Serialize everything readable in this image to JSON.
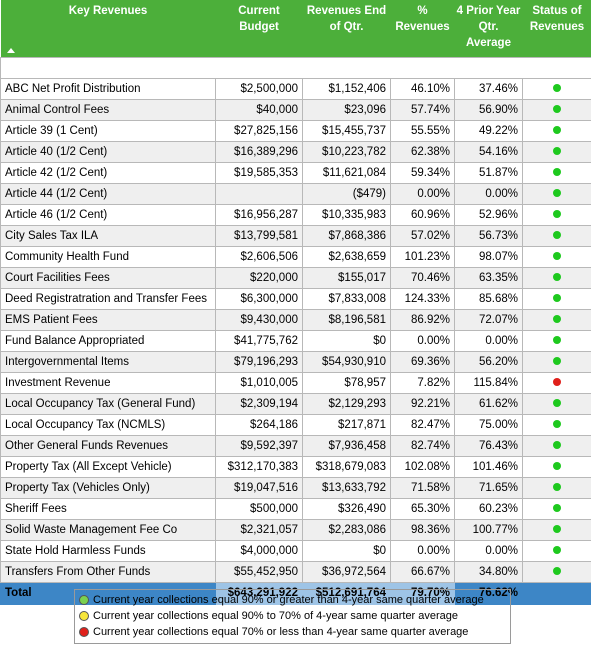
{
  "colors": {
    "header_bg": "#4caf3a",
    "total_bg": "#3d86c6",
    "total_highlight": "#9ec4e6",
    "status_green": "#1ec91e",
    "status_red": "#e0201b",
    "legend_green": "#7ad14f",
    "legend_yellow": "#f7e63b",
    "legend_red": "#e0201b"
  },
  "headers": {
    "key_revenues": "Key Revenues",
    "current_budget": "Current Budget",
    "revenues_end": "Revenues End of Qtr.",
    "pct_revenues": "% Revenues",
    "prior_avg": "4 Prior Year Qtr. Average",
    "status": "Status of Revenues"
  },
  "rows": [
    {
      "name": "ABC Net Profit Distribution",
      "budget": "$2,500,000",
      "end_qtr": "$1,152,406",
      "pct": "46.10%",
      "avg": "37.46%",
      "status": "green"
    },
    {
      "name": "Animal Control Fees",
      "budget": "$40,000",
      "end_qtr": "$23,096",
      "pct": "57.74%",
      "avg": "56.90%",
      "status": "green"
    },
    {
      "name": "Article 39 (1 Cent)",
      "budget": "$27,825,156",
      "end_qtr": "$15,455,737",
      "pct": "55.55%",
      "avg": "49.22%",
      "status": "green"
    },
    {
      "name": "Article 40 (1/2 Cent)",
      "budget": "$16,389,296",
      "end_qtr": "$10,223,782",
      "pct": "62.38%",
      "avg": "54.16%",
      "status": "green"
    },
    {
      "name": "Article 42 (1/2 Cent)",
      "budget": "$19,585,353",
      "end_qtr": "$11,621,084",
      "pct": "59.34%",
      "avg": "51.87%",
      "status": "green"
    },
    {
      "name": "Article 44 (1/2 Cent)",
      "budget": "",
      "end_qtr": "($479)",
      "pct": "0.00%",
      "avg": "0.00%",
      "status": "green"
    },
    {
      "name": "Article 46 (1/2 Cent)",
      "budget": "$16,956,287",
      "end_qtr": "$10,335,983",
      "pct": "60.96%",
      "avg": "52.96%",
      "status": "green"
    },
    {
      "name": "City Sales Tax ILA",
      "budget": "$13,799,581",
      "end_qtr": "$7,868,386",
      "pct": "57.02%",
      "avg": "56.73%",
      "status": "green"
    },
    {
      "name": "Community Health Fund",
      "budget": "$2,606,506",
      "end_qtr": "$2,638,659",
      "pct": "101.23%",
      "avg": "98.07%",
      "status": "green"
    },
    {
      "name": "Court Facilities Fees",
      "budget": "$220,000",
      "end_qtr": "$155,017",
      "pct": "70.46%",
      "avg": "63.35%",
      "status": "green"
    },
    {
      "name": "Deed Registratration and Transfer Fees",
      "budget": "$6,300,000",
      "end_qtr": "$7,833,008",
      "pct": "124.33%",
      "avg": "85.68%",
      "status": "green"
    },
    {
      "name": "EMS Patient Fees",
      "budget": "$9,430,000",
      "end_qtr": "$8,196,581",
      "pct": "86.92%",
      "avg": "72.07%",
      "status": "green"
    },
    {
      "name": "Fund Balance Appropriated",
      "budget": "$41,775,762",
      "end_qtr": "$0",
      "pct": "0.00%",
      "avg": "0.00%",
      "status": "green"
    },
    {
      "name": "Intergovernmental Items",
      "budget": "$79,196,293",
      "end_qtr": "$54,930,910",
      "pct": "69.36%",
      "avg": "56.20%",
      "status": "green"
    },
    {
      "name": "Investment Revenue",
      "budget": "$1,010,005",
      "end_qtr": "$78,957",
      "pct": "7.82%",
      "avg": "115.84%",
      "status": "red"
    },
    {
      "name": "Local Occupancy Tax (General Fund)",
      "budget": "$2,309,194",
      "end_qtr": "$2,129,293",
      "pct": "92.21%",
      "avg": "61.62%",
      "status": "green"
    },
    {
      "name": "Local Occupancy Tax (NCMLS)",
      "budget": "$264,186",
      "end_qtr": "$217,871",
      "pct": "82.47%",
      "avg": "75.00%",
      "status": "green"
    },
    {
      "name": "Other General Funds Revenues",
      "budget": "$9,592,397",
      "end_qtr": "$7,936,458",
      "pct": "82.74%",
      "avg": "76.43%",
      "status": "green"
    },
    {
      "name": "Property Tax (All Except Vehicle)",
      "budget": "$312,170,383",
      "end_qtr": "$318,679,083",
      "pct": "102.08%",
      "avg": "101.46%",
      "status": "green"
    },
    {
      "name": "Property Tax (Vehicles Only)",
      "budget": "$19,047,516",
      "end_qtr": "$13,633,792",
      "pct": "71.58%",
      "avg": "71.65%",
      "status": "green"
    },
    {
      "name": "Sheriff Fees",
      "budget": "$500,000",
      "end_qtr": "$326,490",
      "pct": "65.30%",
      "avg": "60.23%",
      "status": "green"
    },
    {
      "name": "Solid Waste Management Fee Co",
      "budget": "$2,321,057",
      "end_qtr": "$2,283,086",
      "pct": "98.36%",
      "avg": "100.77%",
      "status": "green"
    },
    {
      "name": "State Hold Harmless Funds",
      "budget": "$4,000,000",
      "end_qtr": "$0",
      "pct": "0.00%",
      "avg": "0.00%",
      "status": "green"
    },
    {
      "name": "Transfers From Other Funds",
      "budget": "$55,452,950",
      "end_qtr": "$36,972,564",
      "pct": "66.67%",
      "avg": "34.80%",
      "status": "green"
    }
  ],
  "total": {
    "label": "Total",
    "budget": "$643,291,922",
    "end_qtr": "$512,691,764",
    "pct": "79.70%",
    "avg": "76.62%"
  },
  "legend": [
    {
      "color": "green",
      "text": "Current year collections equal 90% or greater than 4-year same quarter average"
    },
    {
      "color": "yellow",
      "text": "Current year collections equal 90% to 70% of 4-year same quarter average"
    },
    {
      "color": "red",
      "text": "Current year collections equal 70% or less than 4-year same quarter average"
    }
  ]
}
